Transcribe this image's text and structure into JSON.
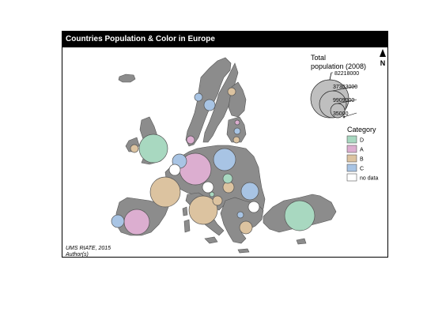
{
  "title": "Countries Population & Color in Europe",
  "north": {
    "label": "N"
  },
  "legend_size": {
    "title_line1": "Total",
    "title_line2": "population (2008)",
    "values": [
      "82218000",
      "37303000",
      "9909000",
      "35000"
    ]
  },
  "legend_category": {
    "title": "Category",
    "items": [
      {
        "label": "D",
        "color": "#a8d8c0"
      },
      {
        "label": "A",
        "color": "#dcaed0"
      },
      {
        "label": "B",
        "color": "#dcc3a0"
      },
      {
        "label": "C",
        "color": "#a8c4e4"
      },
      {
        "label": "no data",
        "color": "#ffffff"
      }
    ]
  },
  "source": {
    "line1": "UMS RIATE, 2015",
    "line2": "Author(s)"
  },
  "colors": {
    "land": "#8c8c8c",
    "land_stroke": "#555555",
    "frame": "#000000"
  }
}
